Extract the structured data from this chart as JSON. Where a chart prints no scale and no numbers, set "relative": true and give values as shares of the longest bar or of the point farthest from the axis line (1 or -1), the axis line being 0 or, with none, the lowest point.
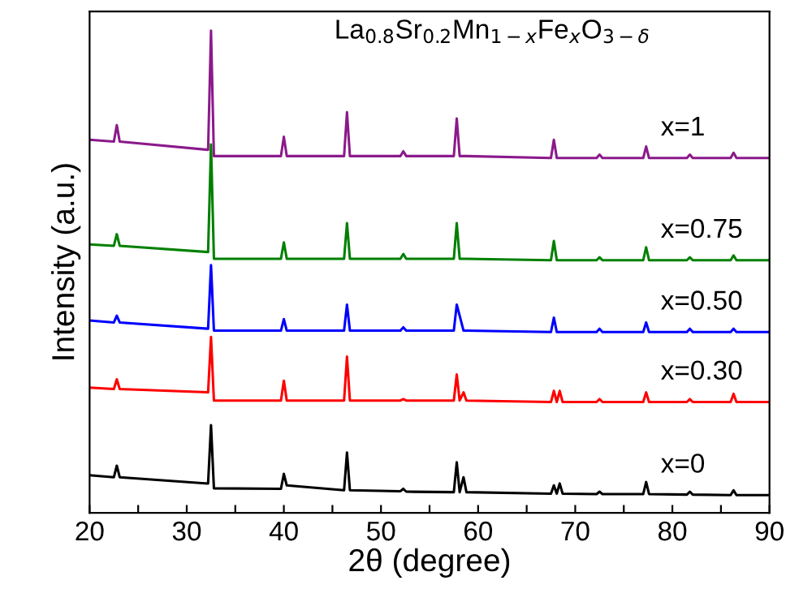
{
  "chart_data": {
    "type": "line",
    "relative": true,
    "title": "La$_{0.8}$Sr$_{0.2}$Mn$_{1−x}$Fe$_{x}$O$_{3−δ}$",
    "xlabel": "2θ (degree)",
    "ylabel": "Intensity (a.u.)",
    "x": [
      20,
      22.5,
      22.8,
      23.1,
      32.2,
      32.5,
      32.8,
      39.7,
      40,
      40.3,
      46.2,
      46.5,
      46.8,
      52.0,
      52.3,
      52.6,
      57.5,
      57.8,
      58.1,
      58.5,
      58.8,
      67.5,
      67.8,
      68.1,
      68.4,
      68.7,
      72.2,
      72.5,
      72.8,
      77.0,
      77.3,
      77.6,
      81.5,
      81.8,
      82.1,
      86.0,
      86.3,
      86.6,
      90
    ],
    "xlim": [
      20,
      90
    ],
    "xticks": [
      20,
      {
        "value": 25,
        "label": null
      },
      30,
      {
        "value": 35,
        "label": null
      },
      40,
      {
        "value": 45,
        "label": null
      },
      50,
      {
        "value": 55,
        "label": null
      },
      60,
      {
        "value": 65,
        "label": null
      },
      70,
      {
        "value": 75,
        "label": null
      },
      80,
      {
        "value": 85,
        "label": null
      },
      90
    ],
    "grid": false,
    "legend": false,
    "marker": "none",
    "line_style": "solid",
    "series": [
      {
        "name": "x=0",
        "color": "#000000",
        "values": [
          0.078,
          0.074,
          0.098,
          0.074,
          0.061,
          0.182,
          0.051,
          0.05,
          0.081,
          0.057,
          0.047,
          0.125,
          0.047,
          0.045,
          0.05,
          0.044,
          0.043,
          0.105,
          0.043,
          0.074,
          0.043,
          0.04,
          0.057,
          0.04,
          0.061,
          0.04,
          0.039,
          0.044,
          0.039,
          0.039,
          0.064,
          0.039,
          0.038,
          0.044,
          0.038,
          0.037,
          0.047,
          0.037,
          0.037
        ]
      },
      {
        "name": "x=0.30",
        "color": "#ff0000",
        "values": [
          0.26,
          0.257,
          0.277,
          0.257,
          0.25,
          0.365,
          0.233,
          0.233,
          0.274,
          0.233,
          0.233,
          0.324,
          0.233,
          0.233,
          0.236,
          0.233,
          0.233,
          0.287,
          0.233,
          0.25,
          0.233,
          0.23,
          0.253,
          0.23,
          0.253,
          0.23,
          0.23,
          0.236,
          0.23,
          0.23,
          0.25,
          0.23,
          0.23,
          0.236,
          0.23,
          0.23,
          0.247,
          0.23,
          0.23
        ]
      },
      {
        "name": "x=0.50",
        "color": "#0000ff",
        "values": [
          0.399,
          0.395,
          0.409,
          0.395,
          0.382,
          0.514,
          0.378,
          0.378,
          0.402,
          0.378,
          0.378,
          0.432,
          0.378,
          0.378,
          0.385,
          0.378,
          0.378,
          0.432,
          0.409,
          0.378,
          0.378,
          0.375,
          0.405,
          0.375,
          0.375,
          0.375,
          0.375,
          0.382,
          0.375,
          0.375,
          0.395,
          0.375,
          0.375,
          0.382,
          0.375,
          0.375,
          0.382,
          0.375,
          0.375
        ]
      },
      {
        "name": "x=0.75",
        "color": "#008000",
        "values": [
          0.557,
          0.554,
          0.578,
          0.554,
          0.541,
          0.764,
          0.527,
          0.527,
          0.561,
          0.527,
          0.527,
          0.601,
          0.527,
          0.527,
          0.537,
          0.527,
          0.527,
          0.601,
          0.527,
          0.527,
          0.527,
          0.524,
          0.564,
          0.524,
          0.524,
          0.524,
          0.524,
          0.53,
          0.524,
          0.524,
          0.551,
          0.524,
          0.524,
          0.53,
          0.524,
          0.524,
          0.534,
          0.524,
          0.524
        ]
      },
      {
        "name": "x=1",
        "color": "#8b1a8b",
        "values": [
          0.774,
          0.77,
          0.804,
          0.77,
          0.753,
          1.0,
          0.74,
          0.74,
          0.78,
          0.74,
          0.74,
          0.831,
          0.74,
          0.74,
          0.75,
          0.74,
          0.74,
          0.818,
          0.74,
          0.74,
          0.74,
          0.736,
          0.774,
          0.736,
          0.736,
          0.736,
          0.736,
          0.743,
          0.736,
          0.736,
          0.76,
          0.736,
          0.736,
          0.743,
          0.736,
          0.736,
          0.747,
          0.736,
          0.736
        ]
      }
    ]
  }
}
